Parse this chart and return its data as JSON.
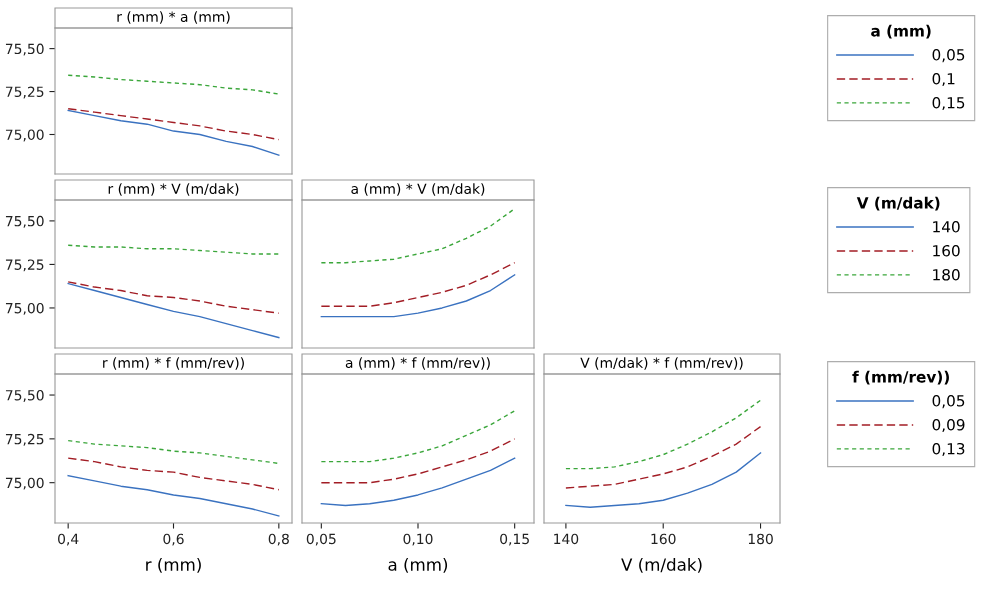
{
  "chart_data": [
    {
      "type": "line",
      "title": "r (mm) * a (mm)",
      "legend": "right",
      "legend_title": "a (mm)",
      "tick_labels": "y",
      "grid": false,
      "x": [
        0.4,
        0.45,
        0.5,
        0.55,
        0.6,
        0.65,
        0.7,
        0.75,
        0.8
      ],
      "xlim": [
        0.375,
        0.825
      ],
      "ylim": [
        74.77,
        75.62
      ],
      "yticks": [
        {
          "value": 75.0,
          "label": "75,00"
        },
        {
          "value": 75.25,
          "label": "75,25"
        },
        {
          "value": 75.5,
          "label": "75,50"
        }
      ],
      "series": [
        {
          "name": "0,05",
          "color": "#3a72c0",
          "line_style": "solid",
          "values": [
            75.14,
            75.11,
            75.08,
            75.06,
            75.02,
            75.0,
            74.96,
            74.93,
            74.88
          ]
        },
        {
          "name": "0,1",
          "color": "#a21d25",
          "line_style": "dashed",
          "values": [
            75.15,
            75.13,
            75.11,
            75.09,
            75.07,
            75.05,
            75.02,
            75.0,
            74.97
          ]
        },
        {
          "name": "0,15",
          "color": "#3aa63a",
          "line_style": "dotted",
          "values": [
            75.345,
            75.335,
            75.32,
            75.31,
            75.3,
            75.29,
            75.27,
            75.26,
            75.235
          ]
        }
      ]
    },
    {
      "type": "line",
      "title": "r (mm) * V (m/dak)",
      "tick_labels": "y",
      "grid": false,
      "x": [
        0.4,
        0.45,
        0.5,
        0.55,
        0.6,
        0.65,
        0.7,
        0.75,
        0.8
      ],
      "xlim": [
        0.375,
        0.825
      ],
      "ylim": [
        74.77,
        75.62
      ],
      "yticks": [
        {
          "value": 75.0,
          "label": "75,00"
        },
        {
          "value": 75.25,
          "label": "75,25"
        },
        {
          "value": 75.5,
          "label": "75,50"
        }
      ],
      "series": [
        {
          "color": "#3a72c0",
          "line_style": "solid",
          "values": [
            75.14,
            75.1,
            75.06,
            75.02,
            74.98,
            74.95,
            74.91,
            74.87,
            74.83
          ]
        },
        {
          "color": "#a21d25",
          "line_style": "dashed",
          "values": [
            75.15,
            75.12,
            75.1,
            75.07,
            75.06,
            75.04,
            75.01,
            74.99,
            74.97
          ]
        },
        {
          "color": "#3aa63a",
          "line_style": "dotted",
          "values": [
            75.36,
            75.35,
            75.35,
            75.34,
            75.34,
            75.33,
            75.32,
            75.31,
            75.31
          ]
        }
      ]
    },
    {
      "type": "line",
      "title": "a (mm) * V (m/dak)",
      "legend": "right",
      "legend_title": "V (m/dak)",
      "tick_labels": false,
      "grid": false,
      "x": [
        0.05,
        0.0625,
        0.075,
        0.0875,
        0.1,
        0.1125,
        0.125,
        0.1375,
        0.15
      ],
      "xlim": [
        0.04,
        0.16
      ],
      "ylim": [
        74.77,
        75.62
      ],
      "series": [
        {
          "name": "140",
          "color": "#3a72c0",
          "line_style": "solid",
          "values": [
            74.95,
            74.95,
            74.95,
            74.95,
            74.97,
            75.0,
            75.04,
            75.1,
            75.19
          ]
        },
        {
          "name": "160",
          "color": "#a21d25",
          "line_style": "dashed",
          "values": [
            75.01,
            75.01,
            75.01,
            75.03,
            75.06,
            75.09,
            75.13,
            75.19,
            75.26
          ]
        },
        {
          "name": "180",
          "color": "#3aa63a",
          "line_style": "dotted",
          "values": [
            75.26,
            75.26,
            75.27,
            75.28,
            75.31,
            75.34,
            75.4,
            75.47,
            75.57
          ]
        }
      ]
    },
    {
      "type": "line",
      "title": "r (mm) * f (mm/rev))",
      "xlabel": "r (mm)",
      "grid": false,
      "x": [
        0.4,
        0.45,
        0.5,
        0.55,
        0.6,
        0.65,
        0.7,
        0.75,
        0.8
      ],
      "xlim": [
        0.375,
        0.825
      ],
      "xticks": [
        {
          "value": 0.4,
          "label": "0,4"
        },
        {
          "value": 0.6,
          "label": "0,6"
        },
        {
          "value": 0.8,
          "label": "0,8"
        }
      ],
      "ylim": [
        74.77,
        75.62
      ],
      "yticks": [
        {
          "value": 75.0,
          "label": "75,00"
        },
        {
          "value": 75.25,
          "label": "75,25"
        },
        {
          "value": 75.5,
          "label": "75,50"
        }
      ],
      "series": [
        {
          "color": "#3a72c0",
          "line_style": "solid",
          "values": [
            75.04,
            75.01,
            74.98,
            74.96,
            74.93,
            74.91,
            74.88,
            74.85,
            74.81
          ]
        },
        {
          "color": "#a21d25",
          "line_style": "dashed",
          "values": [
            75.14,
            75.12,
            75.09,
            75.07,
            75.06,
            75.03,
            75.01,
            74.99,
            74.96
          ]
        },
        {
          "color": "#3aa63a",
          "line_style": "dotted",
          "values": [
            75.24,
            75.22,
            75.21,
            75.2,
            75.18,
            75.17,
            75.15,
            75.13,
            75.11
          ]
        }
      ]
    },
    {
      "type": "line",
      "title": "a (mm) * f (mm/rev))",
      "xlabel": "a (mm)",
      "tick_labels": "x",
      "grid": false,
      "x": [
        0.05,
        0.0625,
        0.075,
        0.0875,
        0.1,
        0.1125,
        0.125,
        0.1375,
        0.15
      ],
      "xlim": [
        0.04,
        0.16
      ],
      "xticks": [
        {
          "value": 0.05,
          "label": "0,05"
        },
        {
          "value": 0.1,
          "label": "0,10"
        },
        {
          "value": 0.15,
          "label": "0,15"
        }
      ],
      "ylim": [
        74.77,
        75.62
      ],
      "series": [
        {
          "color": "#3a72c0",
          "line_style": "solid",
          "values": [
            74.88,
            74.87,
            74.88,
            74.9,
            74.93,
            74.97,
            75.02,
            75.07,
            75.14
          ]
        },
        {
          "color": "#a21d25",
          "line_style": "dashed",
          "values": [
            75.0,
            75.0,
            75.0,
            75.02,
            75.05,
            75.09,
            75.13,
            75.18,
            75.25
          ]
        },
        {
          "color": "#3aa63a",
          "line_style": "dotted",
          "values": [
            75.12,
            75.12,
            75.12,
            75.14,
            75.17,
            75.21,
            75.27,
            75.33,
            75.41
          ]
        }
      ]
    },
    {
      "type": "line",
      "title": "V (m/dak) * f (mm/rev))",
      "xlabel": "V (m/dak)",
      "legend": "right",
      "legend_title": "f (mm/rev))",
      "tick_labels": "x",
      "grid": false,
      "x": [
        140,
        145,
        150,
        155,
        160,
        165,
        170,
        175,
        180
      ],
      "xlim": [
        135.5,
        184
      ],
      "xticks": [
        140,
        160,
        180
      ],
      "ylim": [
        74.77,
        75.62
      ],
      "series": [
        {
          "name": "0,05",
          "color": "#3a72c0",
          "line_style": "solid",
          "values": [
            74.87,
            74.86,
            74.87,
            74.88,
            74.9,
            74.94,
            74.99,
            75.06,
            75.17
          ]
        },
        {
          "name": "0,09",
          "color": "#a21d25",
          "line_style": "dashed",
          "values": [
            74.97,
            74.98,
            74.99,
            75.02,
            75.05,
            75.09,
            75.15,
            75.22,
            75.32
          ]
        },
        {
          "name": "0,13",
          "color": "#3aa63a",
          "line_style": "dotted",
          "values": [
            75.08,
            75.08,
            75.09,
            75.12,
            75.16,
            75.22,
            75.29,
            75.37,
            75.47
          ]
        }
      ]
    }
  ]
}
